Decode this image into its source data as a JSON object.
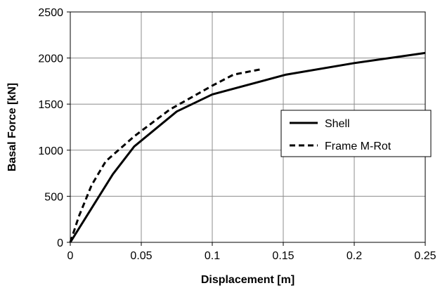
{
  "chart_data": {
    "type": "line",
    "title": "",
    "xlabel": "Displacement [m]",
    "ylabel": "Basal Force [kN]",
    "xlim": [
      0,
      0.25
    ],
    "ylim": [
      0,
      2500
    ],
    "x_ticks": [
      0,
      0.05,
      0.1,
      0.15,
      0.2,
      0.25
    ],
    "x_tick_labels": [
      "0",
      "0.05",
      "0.1",
      "0.15",
      "0.2",
      "0.25"
    ],
    "y_ticks": [
      0,
      500,
      1000,
      1500,
      2000,
      2500
    ],
    "y_tick_labels": [
      "0",
      "500",
      "1000",
      "1500",
      "2000",
      "2500"
    ],
    "grid": true,
    "legend_position": "right-middle",
    "series": [
      {
        "name": "Shell",
        "line_style": "solid",
        "color": "#000000",
        "x": [
          0,
          0.03,
          0.045,
          0.075,
          0.1,
          0.152,
          0.2,
          0.25
        ],
        "y": [
          0,
          740,
          1040,
          1420,
          1605,
          1820,
          1945,
          2055
        ]
      },
      {
        "name": "Frame M-Rot",
        "line_style": "dashed",
        "color": "#000000",
        "x": [
          0,
          0.006,
          0.015,
          0.025,
          0.045,
          0.07,
          0.085,
          0.1,
          0.115,
          0.135
        ],
        "y": [
          0,
          280,
          620,
          880,
          1150,
          1440,
          1570,
          1700,
          1820,
          1880
        ]
      }
    ]
  }
}
